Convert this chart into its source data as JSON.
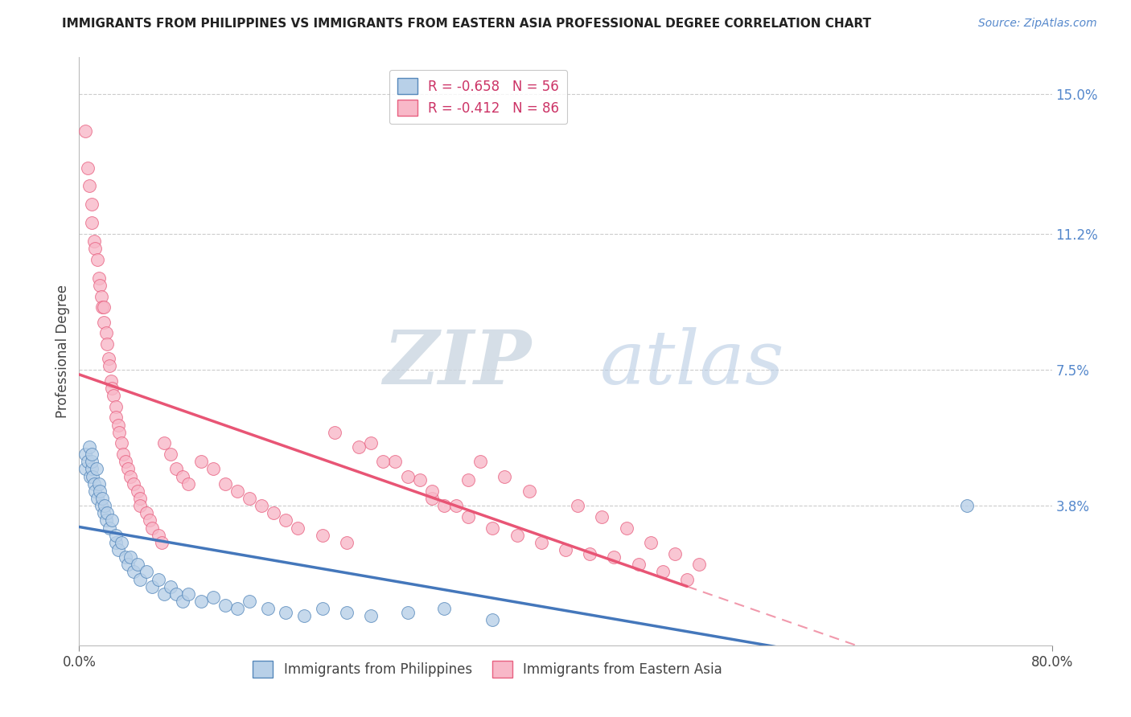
{
  "title": "IMMIGRANTS FROM PHILIPPINES VS IMMIGRANTS FROM EASTERN ASIA PROFESSIONAL DEGREE CORRELATION CHART",
  "source": "Source: ZipAtlas.com",
  "ylabel": "Professional Degree",
  "right_yticklabels": [
    "3.8%",
    "7.5%",
    "11.2%",
    "15.0%"
  ],
  "right_ytick_vals": [
    0.038,
    0.075,
    0.112,
    0.15
  ],
  "xlim": [
    0.0,
    0.8
  ],
  "ylim": [
    0.0,
    0.16
  ],
  "legend_r1": "R = -0.658",
  "legend_n1": "N = 56",
  "legend_r2": "R = -0.412",
  "legend_n2": "N = 86",
  "color_blue": "#b8d0e8",
  "color_pink": "#f8b8c8",
  "edge_blue": "#5588bb",
  "edge_pink": "#e86080",
  "line_blue_color": "#4477bb",
  "line_pink_color": "#e85575",
  "watermark_zip": "ZIP",
  "watermark_atlas": "atlas",
  "blue_x": [
    0.005,
    0.005,
    0.007,
    0.008,
    0.009,
    0.01,
    0.01,
    0.01,
    0.011,
    0.012,
    0.013,
    0.014,
    0.015,
    0.016,
    0.017,
    0.018,
    0.019,
    0.02,
    0.021,
    0.022,
    0.023,
    0.025,
    0.027,
    0.03,
    0.03,
    0.032,
    0.035,
    0.038,
    0.04,
    0.042,
    0.045,
    0.048,
    0.05,
    0.055,
    0.06,
    0.065,
    0.07,
    0.075,
    0.08,
    0.085,
    0.09,
    0.1,
    0.11,
    0.12,
    0.13,
    0.14,
    0.155,
    0.17,
    0.185,
    0.2,
    0.22,
    0.24,
    0.27,
    0.3,
    0.34,
    0.73
  ],
  "blue_y": [
    0.048,
    0.052,
    0.05,
    0.054,
    0.046,
    0.048,
    0.05,
    0.052,
    0.046,
    0.044,
    0.042,
    0.048,
    0.04,
    0.044,
    0.042,
    0.038,
    0.04,
    0.036,
    0.038,
    0.034,
    0.036,
    0.032,
    0.034,
    0.028,
    0.03,
    0.026,
    0.028,
    0.024,
    0.022,
    0.024,
    0.02,
    0.022,
    0.018,
    0.02,
    0.016,
    0.018,
    0.014,
    0.016,
    0.014,
    0.012,
    0.014,
    0.012,
    0.013,
    0.011,
    0.01,
    0.012,
    0.01,
    0.009,
    0.008,
    0.01,
    0.009,
    0.008,
    0.009,
    0.01,
    0.007,
    0.038
  ],
  "pink_x": [
    0.005,
    0.007,
    0.008,
    0.01,
    0.01,
    0.012,
    0.013,
    0.015,
    0.016,
    0.017,
    0.018,
    0.019,
    0.02,
    0.02,
    0.022,
    0.023,
    0.024,
    0.025,
    0.026,
    0.027,
    0.028,
    0.03,
    0.03,
    0.032,
    0.033,
    0.035,
    0.036,
    0.038,
    0.04,
    0.042,
    0.045,
    0.048,
    0.05,
    0.05,
    0.055,
    0.058,
    0.06,
    0.065,
    0.068,
    0.07,
    0.075,
    0.08,
    0.085,
    0.09,
    0.1,
    0.11,
    0.12,
    0.13,
    0.14,
    0.15,
    0.16,
    0.17,
    0.18,
    0.2,
    0.22,
    0.24,
    0.26,
    0.28,
    0.29,
    0.3,
    0.32,
    0.34,
    0.36,
    0.38,
    0.4,
    0.42,
    0.44,
    0.46,
    0.48,
    0.5,
    0.21,
    0.23,
    0.25,
    0.27,
    0.29,
    0.31,
    0.32,
    0.33,
    0.35,
    0.37,
    0.41,
    0.43,
    0.45,
    0.47,
    0.49,
    0.51
  ],
  "pink_y": [
    0.14,
    0.13,
    0.125,
    0.115,
    0.12,
    0.11,
    0.108,
    0.105,
    0.1,
    0.098,
    0.095,
    0.092,
    0.088,
    0.092,
    0.085,
    0.082,
    0.078,
    0.076,
    0.072,
    0.07,
    0.068,
    0.065,
    0.062,
    0.06,
    0.058,
    0.055,
    0.052,
    0.05,
    0.048,
    0.046,
    0.044,
    0.042,
    0.04,
    0.038,
    0.036,
    0.034,
    0.032,
    0.03,
    0.028,
    0.055,
    0.052,
    0.048,
    0.046,
    0.044,
    0.05,
    0.048,
    0.044,
    0.042,
    0.04,
    0.038,
    0.036,
    0.034,
    0.032,
    0.03,
    0.028,
    0.055,
    0.05,
    0.045,
    0.04,
    0.038,
    0.035,
    0.032,
    0.03,
    0.028,
    0.026,
    0.025,
    0.024,
    0.022,
    0.02,
    0.018,
    0.058,
    0.054,
    0.05,
    0.046,
    0.042,
    0.038,
    0.045,
    0.05,
    0.046,
    0.042,
    0.038,
    0.035,
    0.032,
    0.028,
    0.025,
    0.022
  ]
}
